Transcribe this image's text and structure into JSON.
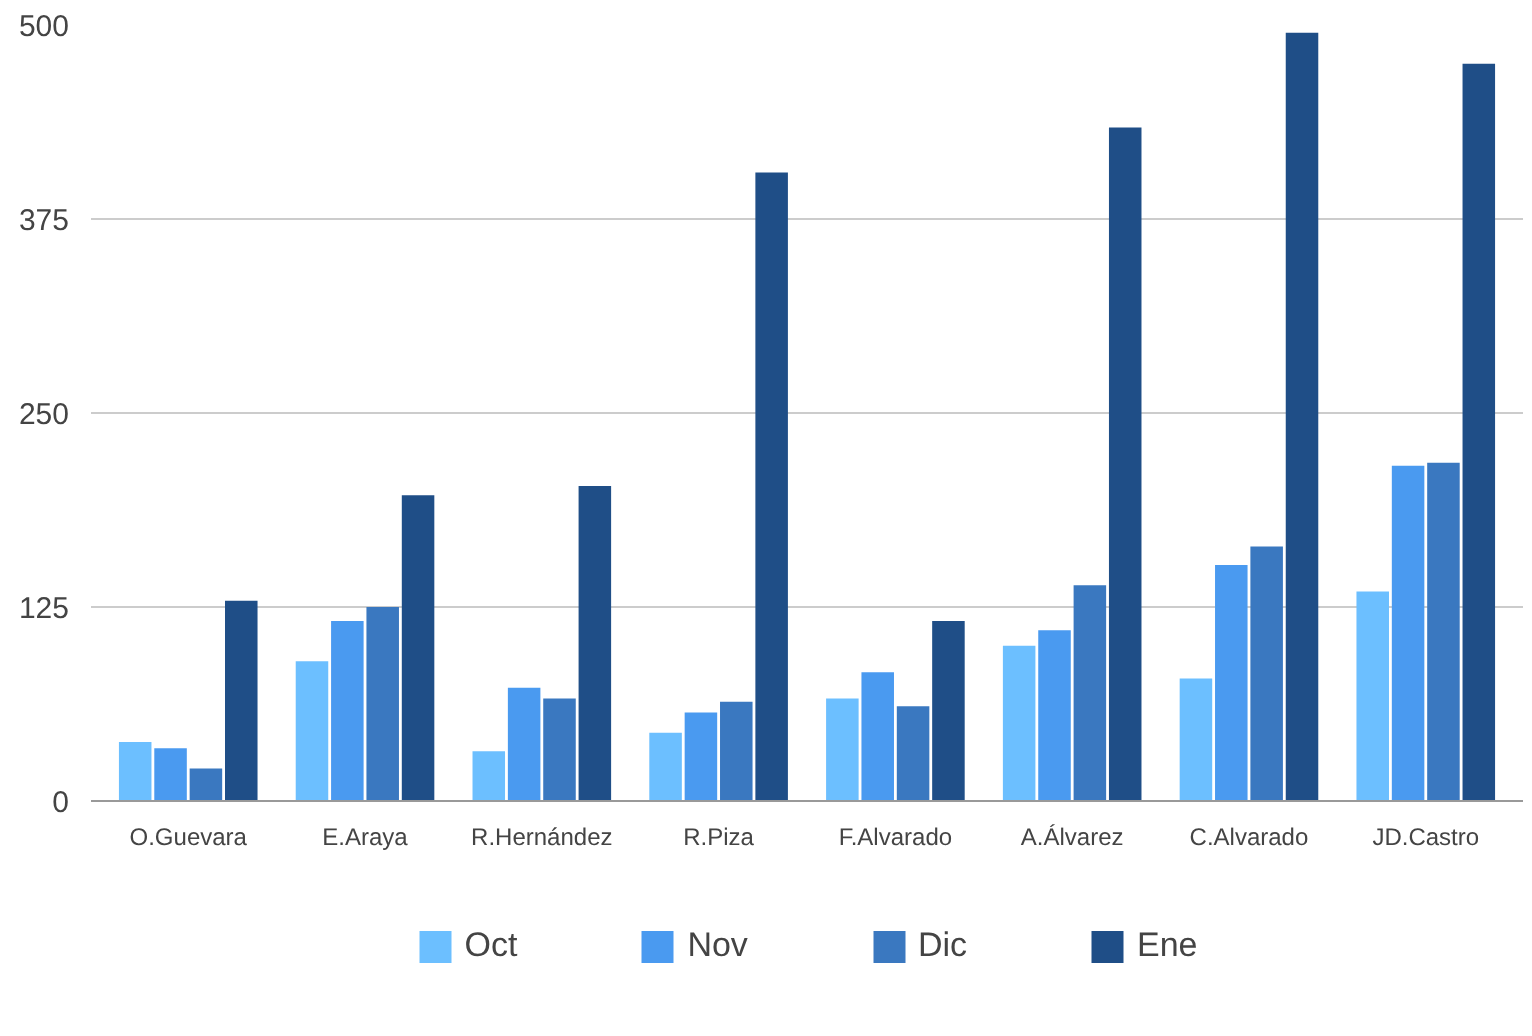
{
  "chart_data": {
    "type": "bar",
    "categories": [
      "O.Guevara",
      "E.Araya",
      "R.Hernández",
      "R.Piza",
      "F.Alvarado",
      "A.Álvarez",
      "C.Alvarado",
      "JD.Castro"
    ],
    "series": [
      {
        "name": "Oct",
        "color": "#6cbfff",
        "values": [
          38,
          90,
          32,
          44,
          66,
          100,
          79,
          135
        ]
      },
      {
        "name": "Nov",
        "color": "#4a9af0",
        "values": [
          34,
          116,
          73,
          57,
          83,
          110,
          152,
          216
        ]
      },
      {
        "name": "Dic",
        "color": "#3a78c0",
        "values": [
          21,
          125,
          66,
          64,
          61,
          139,
          164,
          218
        ]
      },
      {
        "name": "Ene",
        "color": "#1f4e87",
        "values": [
          129,
          197,
          203,
          405,
          116,
          434,
          495,
          475
        ]
      }
    ],
    "ylim": [
      0,
      500
    ],
    "yticks": [
      0,
      125,
      250,
      375,
      500
    ],
    "grid": "y",
    "legend": "bottom"
  }
}
